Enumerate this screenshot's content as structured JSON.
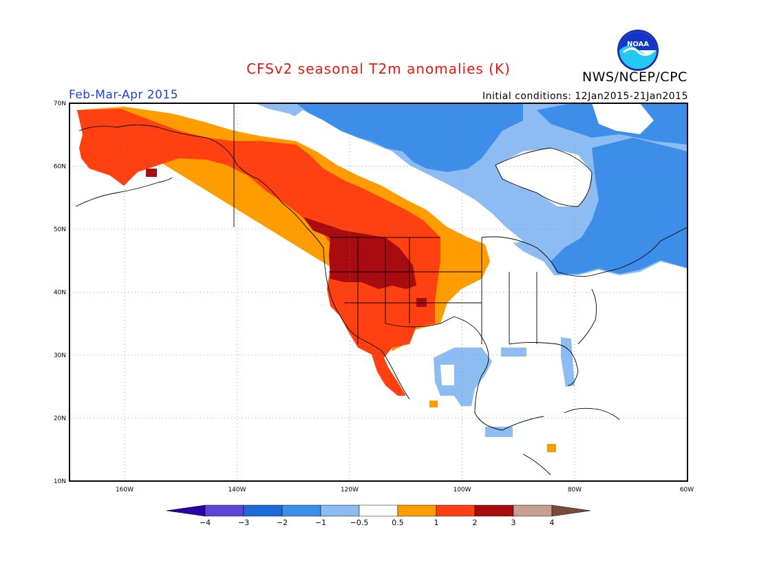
{
  "header": {
    "title": "CFSv2 seasonal T2m anomalies (K)",
    "organization": "NWS/NCEP/CPC",
    "logo_text": "NOAA",
    "season": "Feb-Mar-Apr 2015",
    "initial_conditions": "Initial conditions: 12Jan2015-21Jan2015"
  },
  "map": {
    "lat_labels": [
      "70N",
      "60N",
      "50N",
      "40N",
      "30N",
      "20N",
      "10N"
    ],
    "lon_labels": [
      "160W",
      "140W",
      "120W",
      "100W",
      "80W",
      "60W"
    ],
    "lat_range": [
      10,
      70
    ],
    "lon_range": [
      -171,
      -60
    ],
    "grid": "dotted",
    "regions": [
      {
        "name": "western-warm",
        "category": "1 to 2"
      },
      {
        "name": "northwest-strong-warm",
        "category": "2 to 3"
      },
      {
        "name": "alaska-warm",
        "category": "1 to 2"
      },
      {
        "name": "canada-cold",
        "category": "-1 to -0.5"
      },
      {
        "name": "quebec-cold",
        "category": "-2 to -1"
      },
      {
        "name": "texas-cold",
        "category": "-1 to -0.5"
      }
    ]
  },
  "colorbar": {
    "labels": [
      "-4",
      "-3",
      "-2",
      "-1",
      "-0.5",
      "0.5",
      "1",
      "2",
      "3",
      "4"
    ],
    "colors": [
      "#2a00a8",
      "#5a46d6",
      "#1e6ad6",
      "#3d8ee8",
      "#8cbcf2",
      "#ffffff",
      "#ff9c00",
      "#ff4010",
      "#a80c10",
      "#c8a090",
      "#7a4a3a"
    ]
  }
}
